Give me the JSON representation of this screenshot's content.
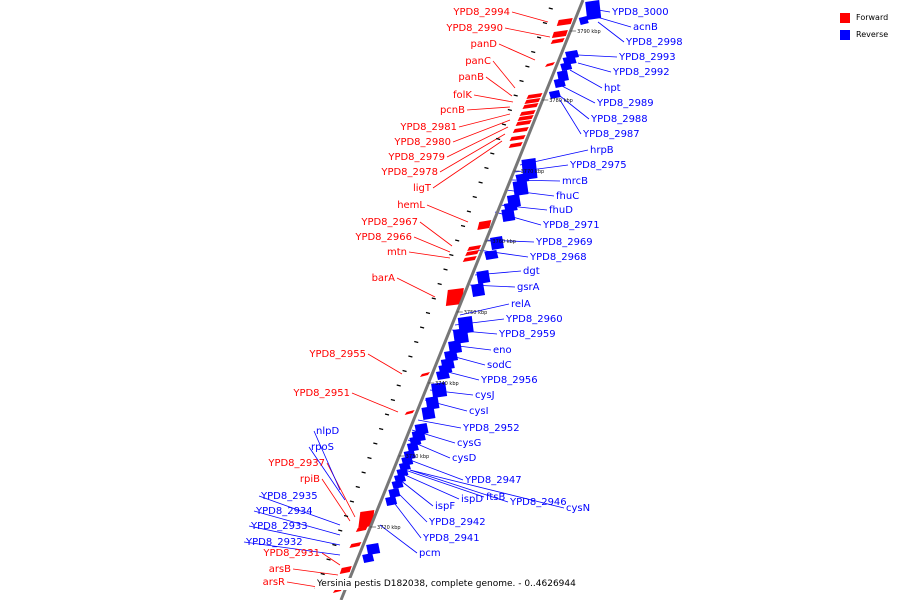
{
  "colors": {
    "forward": "#ff0000",
    "reverse": "#0000ff",
    "axis": "#777777"
  },
  "legend": [
    {
      "label": "Forward",
      "color": "#ff0000"
    },
    {
      "label": "Reverse",
      "color": "#0000ff"
    }
  ],
  "caption": "Yersinia pestis D182038, complete genome. - 0..4626944",
  "ticks": [
    "3720 kbp",
    "3730 kbp",
    "3740 kbp",
    "3750 kbp",
    "3760 kbp",
    "3770 kbp",
    "3780 kbp",
    "3790 kbp"
  ],
  "forward_labels": [
    "YPD8_2994",
    "YPD8_2990",
    "panD",
    "panC",
    "panB",
    "folK",
    "pcnB",
    "YPD8_2981",
    "YPD8_2980",
    "YPD8_2979",
    "YPD8_2978",
    "ligT",
    "hemL",
    "YPD8_2967",
    "YPD8_2966",
    "mtn",
    "barA",
    "YPD8_2955",
    "YPD8_2951",
    "YPD8_2937",
    "rpiB",
    "YPD8_2931",
    "arsB",
    "arsR"
  ],
  "reverse_labels": [
    "YPD8_3000",
    "acnB",
    "YPD8_2998",
    "YPD8_2993",
    "YPD8_2992",
    "hpt",
    "YPD8_2989",
    "YPD8_2988",
    "YPD8_2987",
    "hrpB",
    "YPD8_2975",
    "mrcB",
    "fhuC",
    "fhuD",
    "YPD8_2971",
    "YPD8_2969",
    "YPD8_2968",
    "dgt",
    "gsrA",
    "relA",
    "YPD8_2960",
    "YPD8_2959",
    "eno",
    "sodC",
    "YPD8_2956",
    "cysJ",
    "cysI",
    "YPD8_2952",
    "cysG",
    "cysD",
    "YPD8_2947",
    "ispD",
    "ftsB",
    "YPD8_2946",
    "cysN",
    "ispF",
    "YPD8_2942",
    "YPD8_2941",
    "pcm",
    "nlpD",
    "rpoS",
    "YPD8_2935",
    "YPD8_2934",
    "YPD8_2933",
    "YPD8_2932"
  ]
}
